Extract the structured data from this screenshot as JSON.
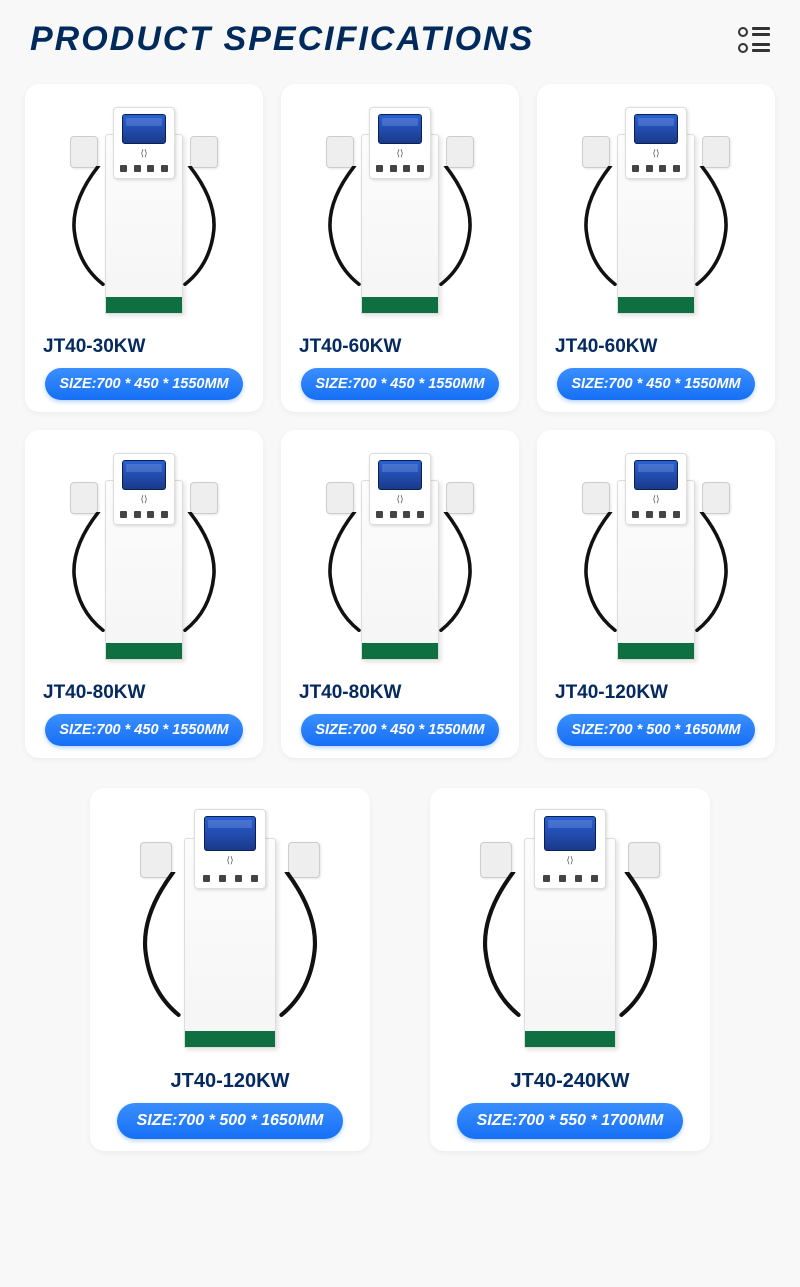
{
  "header": {
    "title": "PRODUCT SPECIFICATIONS"
  },
  "colors": {
    "title_color": "#002a5c",
    "pill_gradient_start": "#3a8eff",
    "pill_gradient_end": "#1670f5",
    "green_strip": "#0e7040",
    "screen_gradient_start": "#2a5fd4",
    "screen_gradient_end": "#1a3a8a",
    "card_bg": "#ffffff",
    "page_bg": "#f8f8f8"
  },
  "products": [
    {
      "name": "JT40-30KW",
      "size": "SIZE:700 * 450 * 1550MM"
    },
    {
      "name": "JT40-60KW",
      "size": "SIZE:700 * 450 * 1550MM"
    },
    {
      "name": "JT40-60KW",
      "size": "SIZE:700 * 450 * 1550MM"
    },
    {
      "name": "JT40-80KW",
      "size": "SIZE:700 * 450 * 1550MM"
    },
    {
      "name": "JT40-80KW",
      "size": "SIZE:700 * 450 * 1550MM"
    },
    {
      "name": "JT40-120KW",
      "size": "SIZE:700 * 500 * 1650MM"
    }
  ],
  "products_bottom": [
    {
      "name": "JT40-120KW",
      "size": "SIZE:700 * 500 * 1650MM"
    },
    {
      "name": "JT40-240KW",
      "size": "SIZE:700 * 550 * 1700MM"
    }
  ]
}
